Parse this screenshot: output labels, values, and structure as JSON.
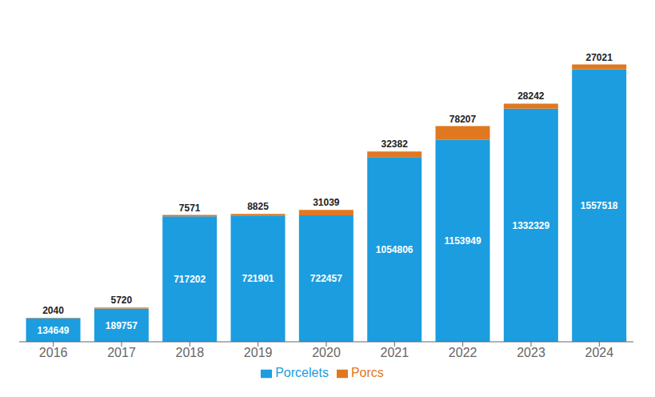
{
  "chart_data": {
    "type": "bar",
    "stacked": true,
    "categories": [
      "2016",
      "2017",
      "2018",
      "2019",
      "2020",
      "2021",
      "2022",
      "2023",
      "2024"
    ],
    "series": [
      {
        "name": "Porcelets",
        "color": "#1b9de0",
        "values": [
          134649,
          189757,
          717202,
          721901,
          722457,
          1054806,
          1153949,
          1332329,
          1557518
        ]
      },
      {
        "name": "Porcs",
        "color": "#e07820",
        "values": [
          2040,
          5720,
          7571,
          8825,
          31039,
          32382,
          78207,
          28242,
          27021
        ]
      }
    ],
    "ylim": [
      0,
      1806374.46
    ],
    "data_labels": true,
    "legend": "bottom",
    "grid": false,
    "tick_labels": "x"
  }
}
